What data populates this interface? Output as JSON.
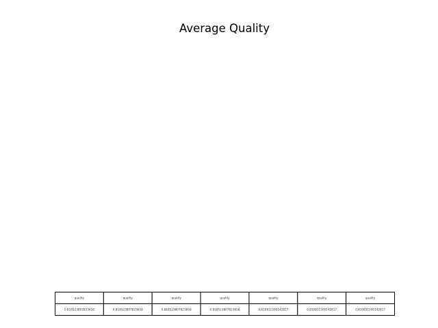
{
  "chart_data": {
    "type": "table",
    "title": "Average Quality",
    "columns": [
      "quality",
      "quality",
      "quality",
      "quality",
      "quality",
      "quality",
      "quality"
    ],
    "rows": [
      [
        "0.818523807823658",
        "0.818523807823658",
        "0.818523807823658",
        "0.818523807823658",
        "0.810831500142817",
        "0.810831500142817",
        "0.810831500142817"
      ]
    ],
    "values": [
      0.818523807823658,
      0.818523807823658,
      0.818523807823658,
      0.818523807823658,
      0.810831500142817,
      0.810831500142817,
      0.810831500142817
    ]
  },
  "colors": {
    "background": "#ffffff",
    "text": "#000000",
    "cell_border": "#000000",
    "cell_text": "#333333"
  }
}
